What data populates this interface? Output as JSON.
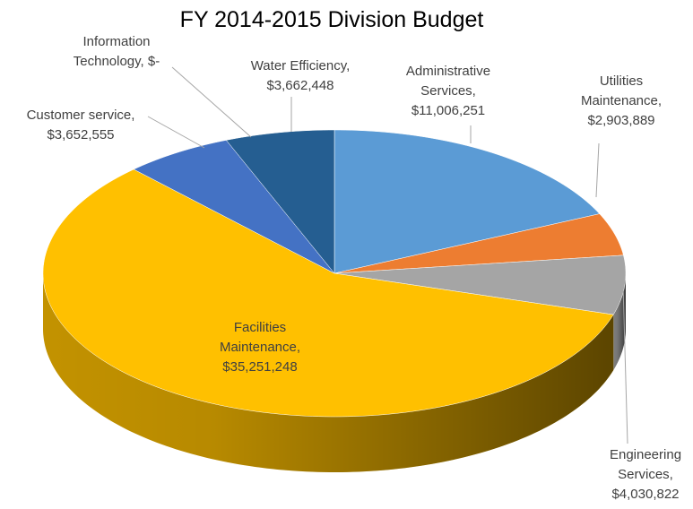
{
  "chart_data": {
    "type": "pie",
    "title": "FY 2014-2015 Division Budget",
    "categories": [
      "Administrative Services",
      "Utilities Maintenance",
      "Engineering Services",
      "Facilities Maintenance",
      "Customer service",
      "Information Technology",
      "Water Efficiency"
    ],
    "values": [
      11006251,
      2903889,
      4030822,
      35251248,
      3652555,
      0,
      3662448
    ],
    "value_labels": [
      "$11,006,251",
      "$2,903,889",
      "$4,030,822",
      "$35,251,248",
      "$3,652,555",
      "$-",
      "$3,662,448"
    ],
    "label_separator": ",",
    "colors": [
      "#5b9bd5",
      "#ed7d31",
      "#a5a5a5",
      "#ffc000",
      "#4472c4",
      "#264478",
      "#255e91"
    ]
  }
}
